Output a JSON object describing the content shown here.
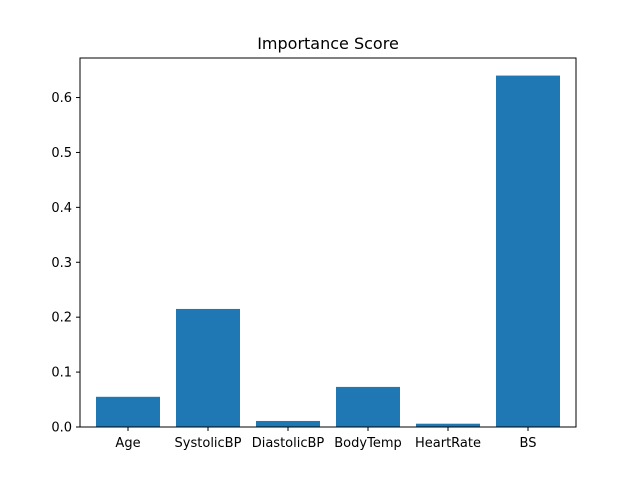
{
  "chart_data": {
    "type": "bar",
    "title": "Importance Score",
    "xlabel": "",
    "ylabel": "",
    "categories": [
      "Age",
      "SystolicBP",
      "DiastolicBP",
      "BodyTemp",
      "HeartRate",
      "BS"
    ],
    "values": [
      0.055,
      0.215,
      0.011,
      0.073,
      0.006,
      0.64
    ],
    "ylim": [
      0,
      0.672
    ],
    "yticks": [
      0.0,
      0.1,
      0.2,
      0.3,
      0.4,
      0.5,
      0.6
    ],
    "ytick_labels": [
      "0.0",
      "0.1",
      "0.2",
      "0.3",
      "0.4",
      "0.5",
      "0.6"
    ],
    "bar_color": "#1f77b4",
    "grid": false,
    "legend": "none"
  }
}
